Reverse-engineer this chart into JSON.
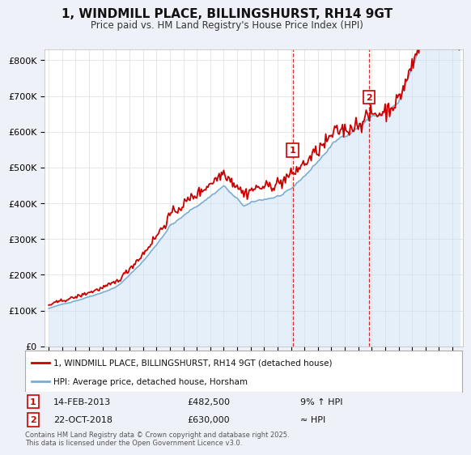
{
  "title": "1, WINDMILL PLACE, BILLINGSHURST, RH14 9GT",
  "subtitle": "Price paid vs. HM Land Registry's House Price Index (HPI)",
  "ylabel_ticks": [
    "£0",
    "£100K",
    "£200K",
    "£300K",
    "£400K",
    "£500K",
    "£600K",
    "£700K",
    "£800K"
  ],
  "ytick_values": [
    0,
    100000,
    200000,
    300000,
    400000,
    500000,
    600000,
    700000,
    800000
  ],
  "ylim": [
    0,
    830000
  ],
  "xlim_start": 1994.7,
  "xlim_end": 2025.8,
  "red_color": "#cc0000",
  "blue_color": "#7aadd4",
  "blue_fill": "#cce0f5",
  "marker1_year": 2013.12,
  "marker2_year": 2018.81,
  "marker1_price": 482500,
  "marker2_price": 630000,
  "marker1_label": "1",
  "marker2_label": "2",
  "marker1_date": "14-FEB-2013",
  "marker2_date": "22-OCT-2018",
  "marker1_pct": "9% ↑ HPI",
  "marker2_pct": "≈ HPI",
  "legend_red_label": "1, WINDMILL PLACE, BILLINGSHURST, RH14 9GT (detached house)",
  "legend_blue_label": "HPI: Average price, detached house, Horsham",
  "footnote": "Contains HM Land Registry data © Crown copyright and database right 2025.\nThis data is licensed under the Open Government Licence v3.0.",
  "bg_color": "#eef2f8",
  "plot_bg_color": "#ffffff",
  "grid_color": "#dddddd"
}
